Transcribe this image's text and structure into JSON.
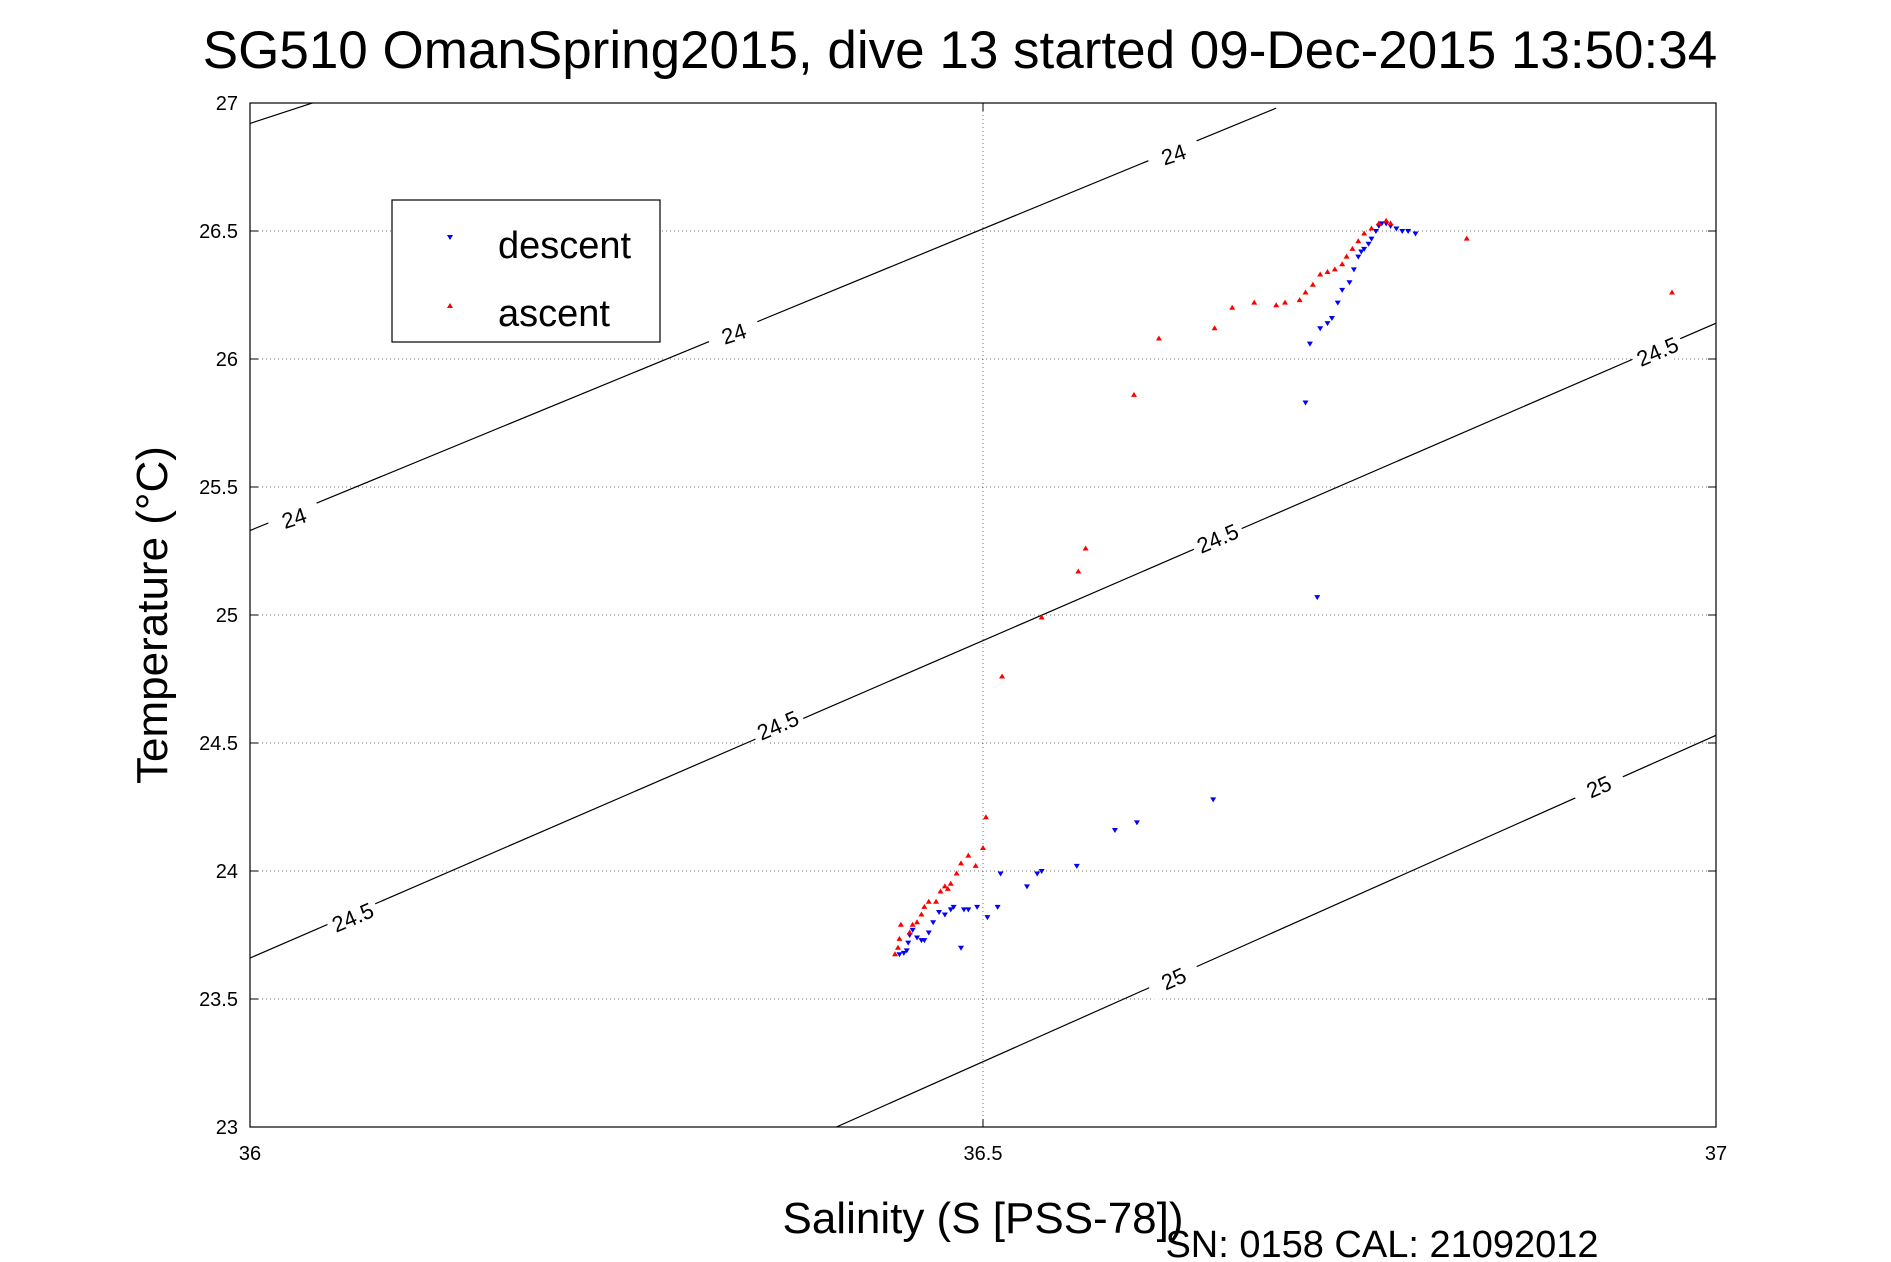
{
  "chart_data": {
    "type": "scatter",
    "title": "SG510 OmanSpring2015, dive 13 started 09-Dec-2015 13:50:34",
    "xlabel": "Salinity (S [PSS-78])",
    "ylabel": "Temperature (°C)",
    "xlim": [
      36,
      37
    ],
    "ylim": [
      23,
      27
    ],
    "xticks": [
      "36",
      "36.5",
      "37"
    ],
    "yticks": [
      "23",
      "23.5",
      "24",
      "24.5",
      "25",
      "25.5",
      "26",
      "26.5",
      "27"
    ],
    "grid": true,
    "legend_position": "top-left",
    "footer": "SN: 0158  CAL: 21092012",
    "contours": [
      {
        "level": "24",
        "points": [
          [
            36.0,
            26.92
          ],
          [
            37.0,
            28.8
          ]
        ],
        "labels": [
          {
            "x": 36.03,
            "y": 25.38
          },
          {
            "x": 36.33,
            "y": 26.1
          },
          {
            "x": 36.63,
            "y": 26.8
          }
        ]
      },
      {
        "level": "24",
        "points": [
          [
            36.0,
            25.33
          ],
          [
            36.7,
            26.98
          ]
        ]
      },
      {
        "level": "24.5",
        "points": [
          [
            36.0,
            23.66
          ],
          [
            37.0,
            26.14
          ]
        ],
        "labels": [
          {
            "x": 36.07,
            "y": 23.82
          },
          {
            "x": 36.36,
            "y": 24.57
          },
          {
            "x": 36.66,
            "y": 25.3
          },
          {
            "x": 36.96,
            "y": 26.03
          }
        ]
      },
      {
        "level": "25",
        "points": [
          [
            36.4,
            23.0
          ],
          [
            37.0,
            24.53
          ]
        ],
        "labels": [
          {
            "x": 36.63,
            "y": 23.58
          },
          {
            "x": 36.92,
            "y": 24.33
          }
        ]
      }
    ],
    "series": [
      {
        "name": "descent",
        "color": "#0000ff",
        "marker": "triangle-down",
        "points": [
          [
            36.443,
            23.675
          ],
          [
            36.446,
            23.68
          ],
          [
            36.448,
            23.69
          ],
          [
            36.449,
            23.72
          ],
          [
            36.45,
            23.75
          ],
          [
            36.452,
            23.77
          ],
          [
            36.455,
            23.74
          ],
          [
            36.458,
            23.73
          ],
          [
            36.46,
            23.73
          ],
          [
            36.463,
            23.76
          ],
          [
            36.466,
            23.8
          ],
          [
            36.47,
            23.84
          ],
          [
            36.474,
            23.83
          ],
          [
            36.478,
            23.85
          ],
          [
            36.48,
            23.86
          ],
          [
            36.485,
            23.7
          ],
          [
            36.487,
            23.85
          ],
          [
            36.49,
            23.85
          ],
          [
            36.496,
            23.86
          ],
          [
            36.503,
            23.82
          ],
          [
            36.51,
            23.86
          ],
          [
            36.512,
            23.99
          ],
          [
            36.53,
            23.94
          ],
          [
            36.537,
            23.99
          ],
          [
            36.54,
            24.0
          ],
          [
            36.564,
            24.02
          ],
          [
            36.59,
            24.16
          ],
          [
            36.605,
            24.19
          ],
          [
            36.657,
            24.28
          ],
          [
            36.72,
            25.83
          ],
          [
            36.723,
            26.06
          ],
          [
            36.728,
            25.07
          ],
          [
            36.73,
            26.12
          ],
          [
            36.735,
            26.14
          ],
          [
            36.738,
            26.16
          ],
          [
            36.742,
            26.22
          ],
          [
            36.745,
            26.27
          ],
          [
            36.75,
            26.3
          ],
          [
            36.753,
            26.35
          ],
          [
            36.756,
            26.4
          ],
          [
            36.758,
            26.42
          ],
          [
            36.76,
            26.43
          ],
          [
            36.763,
            26.45
          ],
          [
            36.765,
            26.47
          ],
          [
            36.768,
            26.5
          ],
          [
            36.77,
            26.52
          ],
          [
            36.772,
            26.53
          ],
          [
            36.775,
            26.53
          ],
          [
            36.778,
            26.52
          ],
          [
            36.782,
            26.51
          ],
          [
            36.786,
            26.5
          ],
          [
            36.79,
            26.5
          ],
          [
            36.795,
            26.49
          ]
        ]
      },
      {
        "name": "ascent",
        "color": "#ff0000",
        "marker": "triangle-up",
        "points": [
          [
            36.44,
            23.675
          ],
          [
            36.442,
            23.7
          ],
          [
            36.443,
            23.735
          ],
          [
            36.444,
            23.79
          ],
          [
            36.45,
            23.76
          ],
          [
            36.452,
            23.79
          ],
          [
            36.455,
            23.8
          ],
          [
            36.458,
            23.83
          ],
          [
            36.46,
            23.86
          ],
          [
            36.463,
            23.88
          ],
          [
            36.468,
            23.88
          ],
          [
            36.471,
            23.92
          ],
          [
            36.474,
            23.94
          ],
          [
            36.476,
            23.93
          ],
          [
            36.478,
            23.95
          ],
          [
            36.482,
            23.99
          ],
          [
            36.485,
            24.03
          ],
          [
            36.49,
            24.06
          ],
          [
            36.495,
            24.02
          ],
          [
            36.5,
            24.09
          ],
          [
            36.502,
            24.21
          ],
          [
            36.513,
            24.76
          ],
          [
            36.54,
            24.99
          ],
          [
            36.565,
            25.17
          ],
          [
            36.57,
            25.26
          ],
          [
            36.603,
            25.86
          ],
          [
            36.62,
            26.08
          ],
          [
            36.658,
            26.12
          ],
          [
            36.67,
            26.2
          ],
          [
            36.685,
            26.22
          ],
          [
            36.7,
            26.21
          ],
          [
            36.706,
            26.22
          ],
          [
            36.716,
            26.23
          ],
          [
            36.72,
            26.26
          ],
          [
            36.725,
            26.29
          ],
          [
            36.73,
            26.33
          ],
          [
            36.735,
            26.34
          ],
          [
            36.74,
            26.35
          ],
          [
            36.745,
            26.37
          ],
          [
            36.748,
            26.4
          ],
          [
            36.752,
            26.43
          ],
          [
            36.756,
            26.46
          ],
          [
            36.76,
            26.49
          ],
          [
            36.765,
            26.51
          ],
          [
            36.77,
            26.53
          ],
          [
            36.775,
            26.54
          ],
          [
            36.778,
            26.53
          ],
          [
            36.83,
            26.47
          ],
          [
            36.97,
            26.26
          ]
        ]
      }
    ]
  }
}
